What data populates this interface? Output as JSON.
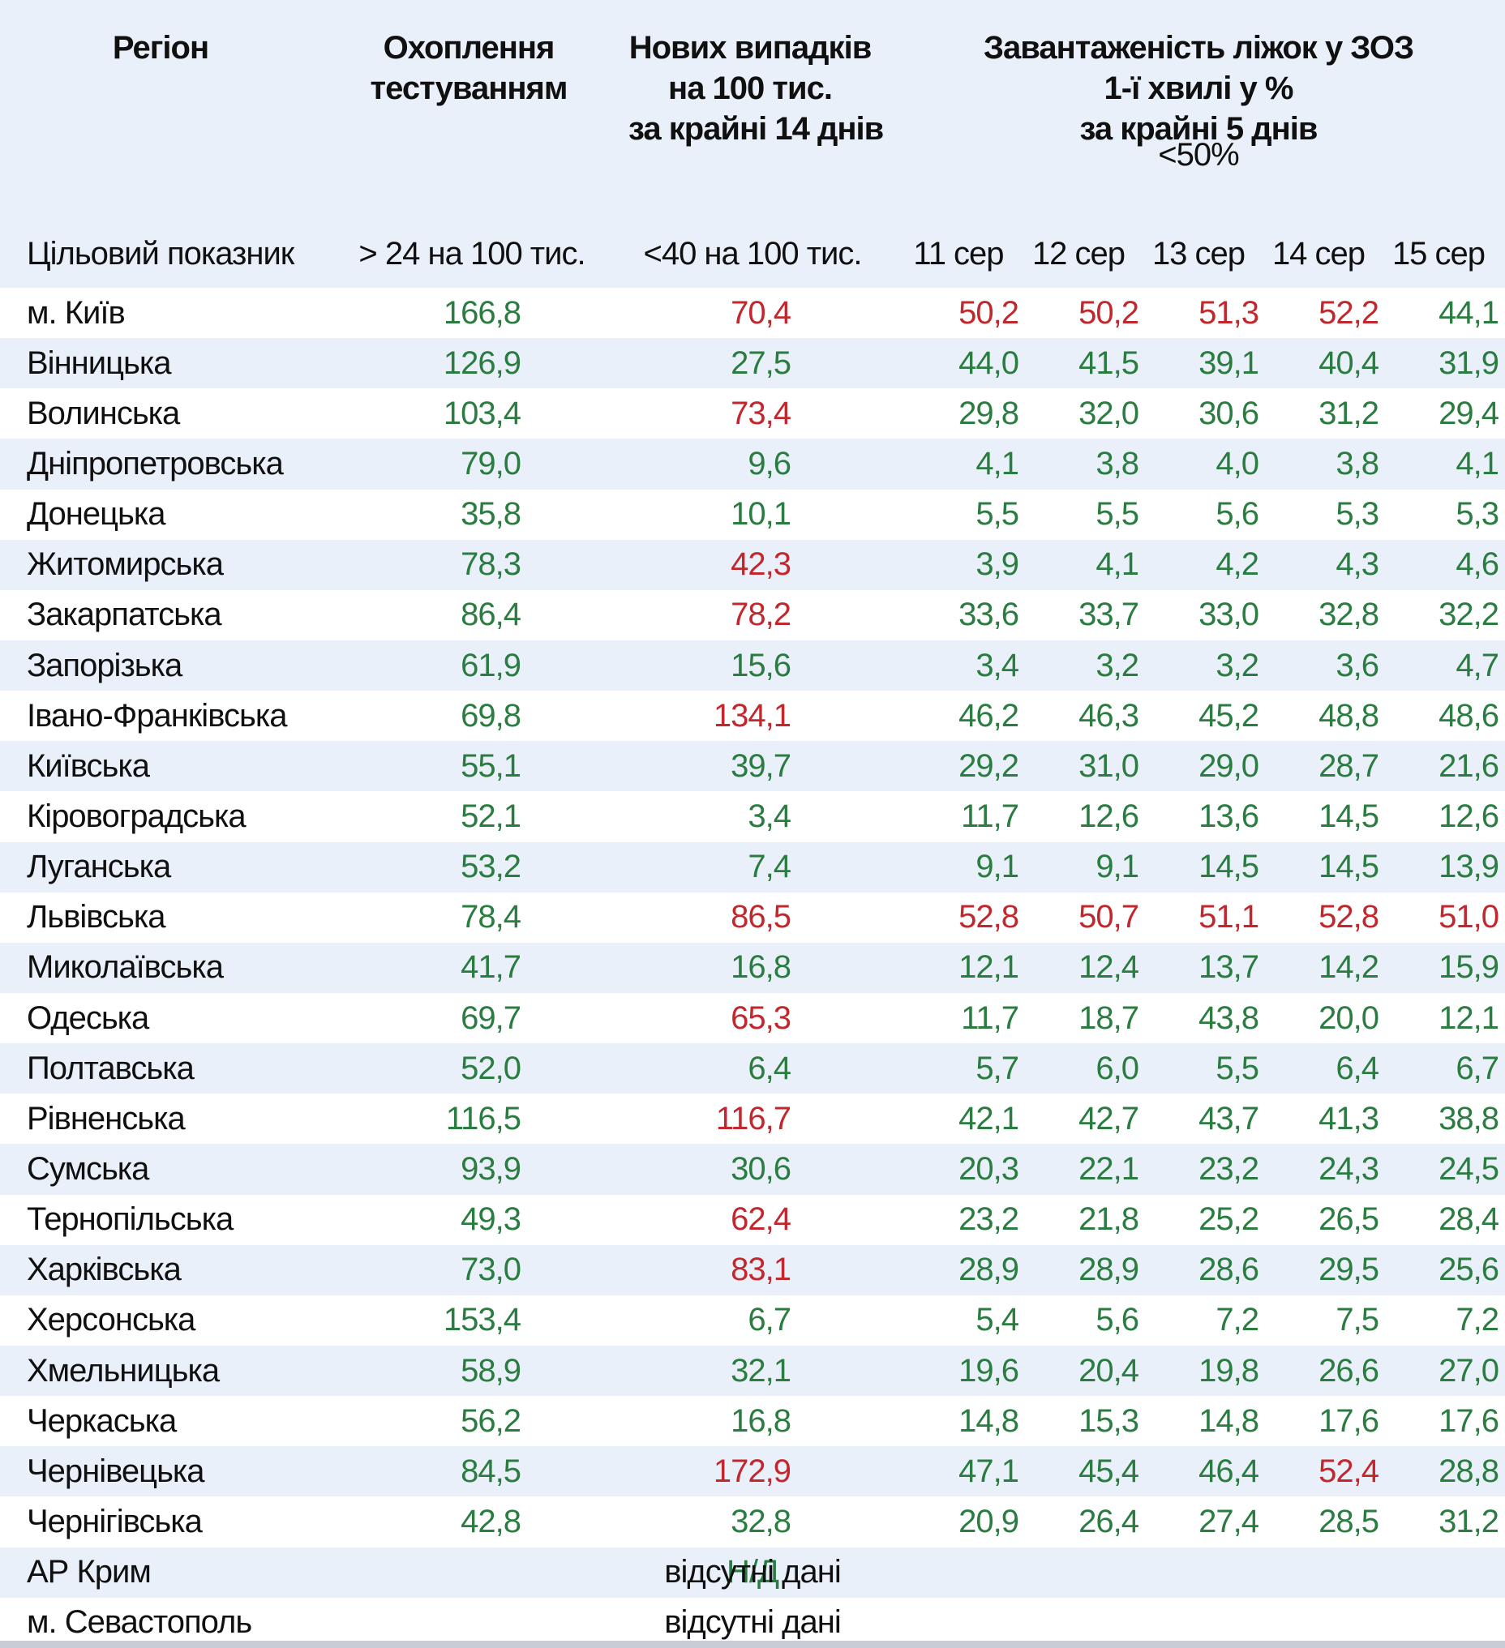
{
  "table": {
    "header": {
      "region": "Регіон",
      "testing_lines": [
        "Охоплення",
        "тестуванням"
      ],
      "cases_lines": [
        "Нових випадків",
        "на 100 тис.",
        "за крайні 14 днів"
      ],
      "beds_lines": [
        "Завантаженість ліжок у ЗОЗ",
        "1-ї хвилі у %",
        "за крайні 5 днів"
      ],
      "beds_target": "<50%",
      "target_row_label": "Цільовий показник",
      "testing_target": "> 24 на 100 тис.",
      "cases_target": "<40 на 100 тис.",
      "dates": [
        "11 сер",
        "12 сер",
        "13 сер",
        "14 сер",
        "15 сер"
      ]
    },
    "no_data_label": "відсутні дані",
    "no_data_overlay": "Н/Д",
    "colors": {
      "good": "#2b7c41",
      "bad": "#c1272c"
    },
    "rows": [
      {
        "region": "м. Київ",
        "testing": "166,8",
        "cases": "70,4",
        "cases_bad": true,
        "days": [
          "50,2",
          "50,2",
          "51,3",
          "52,2",
          "44,1"
        ],
        "days_bad": [
          true,
          true,
          true,
          true,
          false
        ]
      },
      {
        "region": "Вінницька",
        "testing": "126,9",
        "cases": "27,5",
        "cases_bad": false,
        "days": [
          "44,0",
          "41,5",
          "39,1",
          "40,4",
          "31,9"
        ],
        "days_bad": [
          false,
          false,
          false,
          false,
          false
        ]
      },
      {
        "region": "Волинська",
        "testing": "103,4",
        "cases": "73,4",
        "cases_bad": true,
        "days": [
          "29,8",
          "32,0",
          "30,6",
          "31,2",
          "29,4"
        ],
        "days_bad": [
          false,
          false,
          false,
          false,
          false
        ]
      },
      {
        "region": "Дніпропетровська",
        "testing": "79,0",
        "cases": "9,6",
        "cases_bad": false,
        "days": [
          "4,1",
          "3,8",
          "4,0",
          "3,8",
          "4,1"
        ],
        "days_bad": [
          false,
          false,
          false,
          false,
          false
        ]
      },
      {
        "region": "Донецька",
        "testing": "35,8",
        "cases": "10,1",
        "cases_bad": false,
        "days": [
          "5,5",
          "5,5",
          "5,6",
          "5,3",
          "5,3"
        ],
        "days_bad": [
          false,
          false,
          false,
          false,
          false
        ]
      },
      {
        "region": "Житомирська",
        "testing": "78,3",
        "cases": "42,3",
        "cases_bad": true,
        "days": [
          "3,9",
          "4,1",
          "4,2",
          "4,3",
          "4,6"
        ],
        "days_bad": [
          false,
          false,
          false,
          false,
          false
        ]
      },
      {
        "region": "Закарпатська",
        "testing": "86,4",
        "cases": "78,2",
        "cases_bad": true,
        "days": [
          "33,6",
          "33,7",
          "33,0",
          "32,8",
          "32,2"
        ],
        "days_bad": [
          false,
          false,
          false,
          false,
          false
        ]
      },
      {
        "region": "Запорізька",
        "testing": "61,9",
        "cases": "15,6",
        "cases_bad": false,
        "days": [
          "3,4",
          "3,2",
          "3,2",
          "3,6",
          "4,7"
        ],
        "days_bad": [
          false,
          false,
          false,
          false,
          false
        ]
      },
      {
        "region": "Івано-Франківська",
        "testing": "69,8",
        "cases": "134,1",
        "cases_bad": true,
        "days": [
          "46,2",
          "46,3",
          "45,2",
          "48,8",
          "48,6"
        ],
        "days_bad": [
          false,
          false,
          false,
          false,
          false
        ]
      },
      {
        "region": "Київська",
        "testing": "55,1",
        "cases": "39,7",
        "cases_bad": false,
        "days": [
          "29,2",
          "31,0",
          "29,0",
          "28,7",
          "21,6"
        ],
        "days_bad": [
          false,
          false,
          false,
          false,
          false
        ]
      },
      {
        "region": "Кіровоградська",
        "testing": "52,1",
        "cases": "3,4",
        "cases_bad": false,
        "days": [
          "11,7",
          "12,6",
          "13,6",
          "14,5",
          "12,6"
        ],
        "days_bad": [
          false,
          false,
          false,
          false,
          false
        ]
      },
      {
        "region": "Луганська",
        "testing": "53,2",
        "cases": "7,4",
        "cases_bad": false,
        "days": [
          "9,1",
          "9,1",
          "14,5",
          "14,5",
          "13,9"
        ],
        "days_bad": [
          false,
          false,
          false,
          false,
          false
        ]
      },
      {
        "region": "Львівська",
        "testing": "78,4",
        "cases": "86,5",
        "cases_bad": true,
        "days": [
          "52,8",
          "50,7",
          "51,1",
          "52,8",
          "51,0"
        ],
        "days_bad": [
          true,
          true,
          true,
          true,
          true
        ]
      },
      {
        "region": "Миколаївська",
        "testing": "41,7",
        "cases": "16,8",
        "cases_bad": false,
        "days": [
          "12,1",
          "12,4",
          "13,7",
          "14,2",
          "15,9"
        ],
        "days_bad": [
          false,
          false,
          false,
          false,
          false
        ]
      },
      {
        "region": "Одеська",
        "testing": "69,7",
        "cases": "65,3",
        "cases_bad": true,
        "days": [
          "11,7",
          "18,7",
          "43,8",
          "20,0",
          "12,1"
        ],
        "days_bad": [
          false,
          false,
          false,
          false,
          false
        ]
      },
      {
        "region": "Полтавська",
        "testing": "52,0",
        "cases": "6,4",
        "cases_bad": false,
        "days": [
          "5,7",
          "6,0",
          "5,5",
          "6,4",
          "6,7"
        ],
        "days_bad": [
          false,
          false,
          false,
          false,
          false
        ]
      },
      {
        "region": "Рівненська",
        "testing": "116,5",
        "cases": "116,7",
        "cases_bad": true,
        "days": [
          "42,1",
          "42,7",
          "43,7",
          "41,3",
          "38,8"
        ],
        "days_bad": [
          false,
          false,
          false,
          false,
          false
        ]
      },
      {
        "region": "Сумська",
        "testing": "93,9",
        "cases": "30,6",
        "cases_bad": false,
        "days": [
          "20,3",
          "22,1",
          "23,2",
          "24,3",
          "24,5"
        ],
        "days_bad": [
          false,
          false,
          false,
          false,
          false
        ]
      },
      {
        "region": "Тернопільська",
        "testing": "49,3",
        "cases": "62,4",
        "cases_bad": true,
        "days": [
          "23,2",
          "21,8",
          "25,2",
          "26,5",
          "28,4"
        ],
        "days_bad": [
          false,
          false,
          false,
          false,
          false
        ]
      },
      {
        "region": "Харківська",
        "testing": "73,0",
        "cases": "83,1",
        "cases_bad": true,
        "days": [
          "28,9",
          "28,9",
          "28,6",
          "29,5",
          "25,6"
        ],
        "days_bad": [
          false,
          false,
          false,
          false,
          false
        ]
      },
      {
        "region": "Херсонська",
        "testing": "153,4",
        "cases": "6,7",
        "cases_bad": false,
        "days": [
          "5,4",
          "5,6",
          "7,2",
          "7,5",
          "7,2"
        ],
        "days_bad": [
          false,
          false,
          false,
          false,
          false
        ]
      },
      {
        "region": "Хмельницька",
        "testing": "58,9",
        "cases": "32,1",
        "cases_bad": false,
        "days": [
          "19,6",
          "20,4",
          "19,8",
          "26,6",
          "27,0"
        ],
        "days_bad": [
          false,
          false,
          false,
          false,
          false
        ]
      },
      {
        "region": "Черкаська",
        "testing": "56,2",
        "cases": "16,8",
        "cases_bad": false,
        "days": [
          "14,8",
          "15,3",
          "14,8",
          "17,6",
          "17,6"
        ],
        "days_bad": [
          false,
          false,
          false,
          false,
          false
        ]
      },
      {
        "region": "Чернівецька",
        "testing": "84,5",
        "cases": "172,9",
        "cases_bad": true,
        "days": [
          "47,1",
          "45,4",
          "46,4",
          "52,4",
          "28,8"
        ],
        "days_bad": [
          false,
          false,
          false,
          true,
          false
        ]
      },
      {
        "region": "Чернігівська",
        "testing": "42,8",
        "cases": "32,8",
        "cases_bad": false,
        "days": [
          "20,9",
          "26,4",
          "27,4",
          "28,5",
          "31,2"
        ],
        "days_bad": [
          false,
          false,
          false,
          false,
          false
        ]
      },
      {
        "region": "АР Крим",
        "no_data": true,
        "overlay": true
      },
      {
        "region": "м. Севастополь",
        "no_data": true,
        "overlay": false
      }
    ]
  }
}
